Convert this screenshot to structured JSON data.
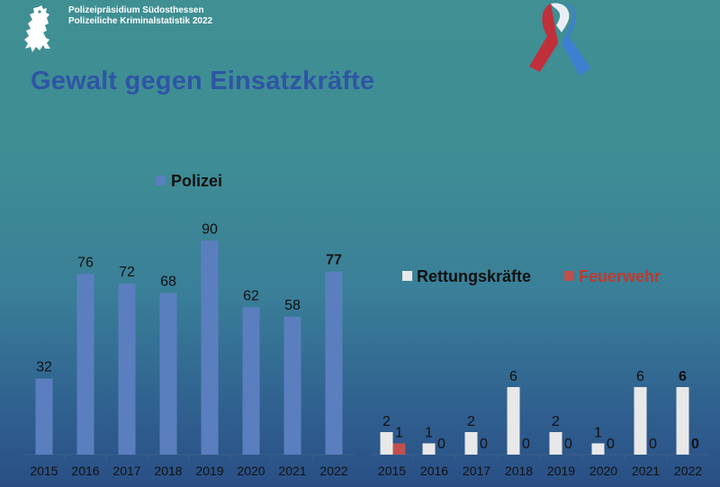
{
  "header": {
    "line1": "Polizeipräsidium Südosthessen",
    "line2": "Polizeiliche Kriminalstatistik 2022"
  },
  "title": "Gewalt gegen Einsatzkräfte",
  "icons": {
    "logo": "hessen-lion-icon",
    "ribbon": "blue-red-ribbon-icon"
  },
  "colors": {
    "polizei": "#5b7fbe",
    "rettung": "#e8e8e8",
    "feuerwehr": "#c0504d",
    "title": "#2f55a5",
    "feuerwehr_legend_text": "#c0392b"
  },
  "chart_data": [
    {
      "type": "bar",
      "categories": [
        "2015",
        "2016",
        "2017",
        "2018",
        "2019",
        "2020",
        "2021",
        "2022"
      ],
      "series": [
        {
          "name": "Polizei",
          "values": [
            32,
            76,
            72,
            68,
            90,
            62,
            58,
            77
          ]
        }
      ],
      "legend": "top",
      "grid": false,
      "ylim": [
        0,
        100
      ],
      "data_labels": true,
      "bold_last_label": true
    },
    {
      "type": "bar",
      "categories": [
        "2015",
        "2016",
        "2017",
        "2018",
        "2019",
        "2020",
        "2021",
        "2022"
      ],
      "series": [
        {
          "name": "Rettungskräfte",
          "values": [
            2,
            1,
            2,
            6,
            2,
            1,
            6,
            6
          ]
        },
        {
          "name": "Feuerwehr",
          "values": [
            1,
            0,
            0,
            0,
            0,
            0,
            0,
            0
          ]
        }
      ],
      "legend": "top",
      "grid": false,
      "ylim": [
        0,
        10
      ],
      "data_labels": true,
      "bold_last_label": true
    }
  ]
}
